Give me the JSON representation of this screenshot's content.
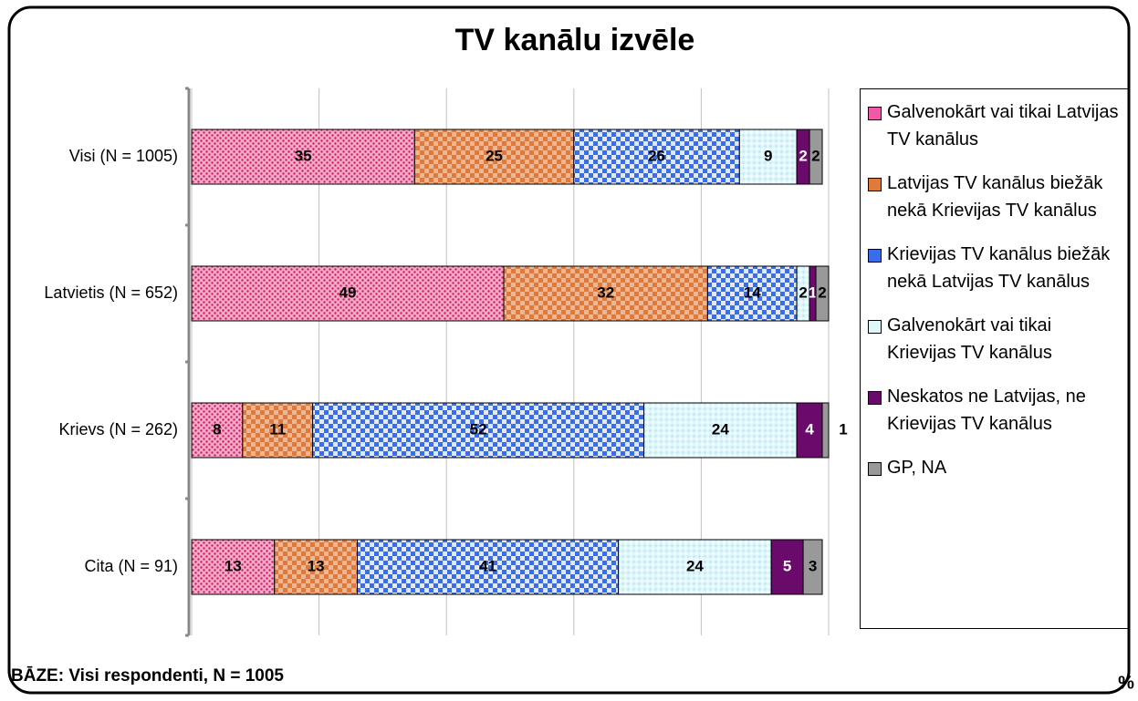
{
  "chart_data": {
    "type": "stacked_bar_horizontal",
    "title": "TV kanālu izvēle",
    "footnote": "BĀZE: Visi respondenti, N = 1005",
    "unit_label": "%",
    "categories": [
      "Visi (N = 1005)",
      "Latvietis (N = 652)",
      "Krievs (N = 262)",
      "Cita (N = 91)"
    ],
    "series": [
      {
        "name": "Galvenokārt vai tikai Latvijas TV kanālus",
        "color": "#ee5aa8",
        "values": [
          35,
          49,
          8,
          13
        ]
      },
      {
        "name": "Latvijas TV kanālus biežāk nekā Krievijas TV kanālus",
        "color": "#e07a3a",
        "values": [
          25,
          32,
          11,
          13
        ]
      },
      {
        "name": "Krievijas TV kanālus biežāk nekā Latvijas TV kanālus",
        "color": "#3a6ee8",
        "values": [
          26,
          14,
          52,
          41
        ]
      },
      {
        "name": "Galvenokārt vai tikai Krievijas TV kanālus",
        "color": "#dff7fb",
        "values": [
          9,
          2,
          24,
          24
        ]
      },
      {
        "name": "Neskatos ne Latvijas, ne Krievijas TV kanālus",
        "color": "#6a0a6a",
        "values": [
          2,
          1,
          4,
          5
        ]
      },
      {
        "name": "GP, NA",
        "color": "#999999",
        "values": [
          2,
          2,
          1,
          3
        ]
      }
    ],
    "xlim": [
      0,
      100
    ],
    "xticks": [
      0,
      20,
      40,
      60,
      80,
      100
    ],
    "grid": true,
    "legend": "right"
  }
}
